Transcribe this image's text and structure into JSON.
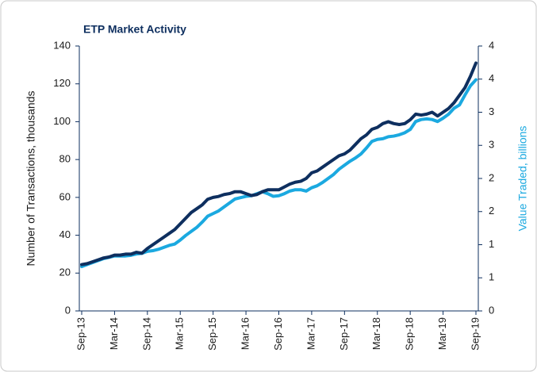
{
  "chart_data": {
    "type": "line",
    "title": "ETP Market Activity",
    "y_label": "Number of Transactions, thousands",
    "y2_label": "Value Traded, billions",
    "categories": [
      "Sep-13",
      null,
      null,
      null,
      null,
      null,
      "Mar-14",
      null,
      null,
      null,
      null,
      null,
      "Sep-14",
      null,
      null,
      null,
      null,
      null,
      "Mar-15",
      null,
      null,
      null,
      null,
      null,
      "Sep-15",
      null,
      null,
      null,
      null,
      null,
      "Mar-16",
      null,
      null,
      null,
      null,
      null,
      "Sep-16",
      null,
      null,
      null,
      null,
      null,
      "Mar-17",
      null,
      null,
      null,
      null,
      null,
      "Sep-17",
      null,
      null,
      null,
      null,
      null,
      "Mar-18",
      null,
      null,
      null,
      null,
      null,
      "Sep-18",
      null,
      null,
      null,
      null,
      null,
      "Mar-19",
      null,
      null,
      null,
      null,
      null,
      "Sep-19"
    ],
    "series": [
      {
        "color": "#0e2f5f",
        "values": [
          24.5,
          25,
          26,
          27,
          28,
          28.5,
          29.5,
          29.5,
          30,
          30,
          31,
          30.5,
          33,
          35,
          37,
          39,
          41,
          43,
          46,
          49,
          52,
          54,
          56,
          59,
          60,
          60.5,
          61.5,
          62,
          63,
          63,
          62,
          61,
          61.5,
          63,
          64,
          64,
          64,
          65.5,
          67,
          68,
          68.5,
          70,
          73,
          74,
          76,
          78,
          80,
          82,
          83,
          85,
          88,
          91,
          93,
          96,
          97,
          99,
          100,
          99,
          98.5,
          99,
          101,
          104,
          103.5,
          104,
          105,
          103,
          105,
          107,
          110,
          114,
          118,
          124,
          131
        ]
      },
      {
        "color": "#1ba9e0",
        "axis": "y2",
        "values": [
          0.67,
          0.7,
          0.73,
          0.76,
          0.79,
          0.81,
          0.83,
          0.83,
          0.83,
          0.84,
          0.86,
          0.87,
          0.9,
          0.91,
          0.93,
          0.96,
          0.99,
          1.01,
          1.07,
          1.14,
          1.2,
          1.26,
          1.34,
          1.43,
          1.47,
          1.51,
          1.57,
          1.63,
          1.69,
          1.71,
          1.73,
          1.74,
          1.77,
          1.8,
          1.77,
          1.73,
          1.74,
          1.77,
          1.81,
          1.83,
          1.83,
          1.81,
          1.86,
          1.89,
          1.94,
          2.0,
          2.06,
          2.14,
          2.2,
          2.26,
          2.31,
          2.37,
          2.46,
          2.56,
          2.59,
          2.6,
          2.63,
          2.64,
          2.66,
          2.69,
          2.74,
          2.86,
          2.89,
          2.9,
          2.89,
          2.86,
          2.91,
          2.97,
          3.06,
          3.11,
          3.26,
          3.4,
          3.49
        ]
      }
    ],
    "ylim": [
      0,
      140
    ],
    "yticks": [
      0,
      20,
      40,
      60,
      80,
      100,
      120,
      140
    ],
    "y2lim": [
      0,
      4
    ],
    "y2ticks": [
      0,
      {
        "value": 0.5,
        "label": "1"
      },
      1,
      {
        "value": 1.5,
        "label": "2"
      },
      2,
      {
        "value": 2.5,
        "label": "3"
      },
      3,
      {
        "value": 3.5,
        "label": "4"
      },
      4
    ]
  }
}
